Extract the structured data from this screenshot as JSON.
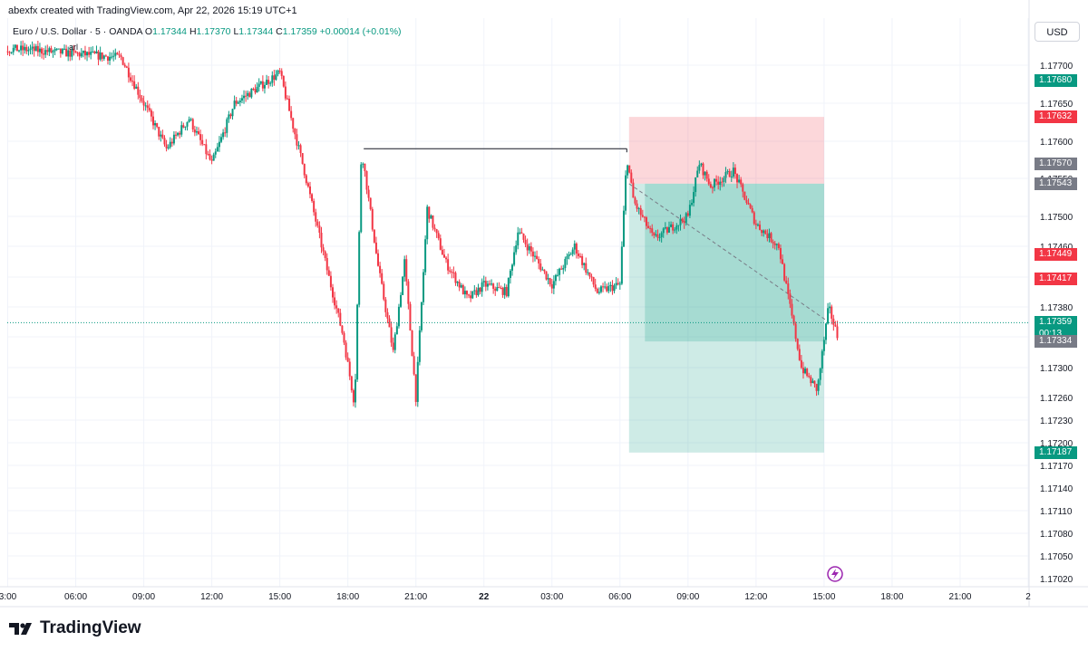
{
  "header": {
    "credit": "abexfx created with TradingView.com, Apr 22, 2026 15:19 UTC+1",
    "symbol": "Euro / U.S. Dollar · 5 · OANDA",
    "open_label": "O",
    "open": "1.17344",
    "high_label": "H",
    "high": "1.17370",
    "low_label": "L",
    "low": "1.17344",
    "close_label": "C",
    "close": "1.17359",
    "change": "+0.00014 (+0.01%)",
    "sub_label": "arl",
    "currency": "USD"
  },
  "brand": {
    "name": "TradingView"
  },
  "colors": {
    "up": "#089981",
    "down": "#f23645",
    "grid": "#f0f3fa",
    "stop_zone": "rgba(242,54,69,0.2)",
    "target_zone": "rgba(8,153,129,0.2)",
    "price_line": "#089981",
    "grey_tag": "#787b86"
  },
  "chart_data": {
    "type": "candlestick",
    "title": "",
    "xlabel": "",
    "ylabel": "USD",
    "interval": "5m",
    "ylim": [
      1.17,
      1.1773
    ],
    "y_ticks": [
      "1.17700",
      "1.17650",
      "1.17600",
      "1.17550",
      "1.17500",
      "1.17460",
      "1.17420",
      "1.17380",
      "1.17340",
      "1.17300",
      "1.17260",
      "1.17230",
      "1.17200",
      "1.17170",
      "1.17140",
      "1.17110",
      "1.17080",
      "1.17050",
      "1.17020"
    ],
    "x_ticks": [
      "3:00",
      "06:00",
      "09:00",
      "12:00",
      "15:00",
      "18:00",
      "21:00",
      "22",
      "03:00",
      "06:00",
      "09:00",
      "12:00",
      "15:00",
      "18:00",
      "21:00",
      "2"
    ],
    "x_tick_hours": [
      3,
      6,
      9,
      12,
      15,
      18,
      21,
      24,
      27,
      30,
      33,
      36,
      39,
      42,
      45,
      48
    ],
    "price_tags": [
      {
        "value": 1.1768,
        "label": "1.17680",
        "color": "#089981"
      },
      {
        "value": 1.17632,
        "label": "1.17632",
        "color": "#f23645"
      },
      {
        "value": 1.1757,
        "label": "1.17570",
        "color": "#787b86"
      },
      {
        "value": 1.17543,
        "label": "1.17543",
        "color": "#787b86"
      },
      {
        "value": 1.17449,
        "label": "1.17449",
        "color": "#f23645"
      },
      {
        "value": 1.17417,
        "label": "1.17417",
        "color": "#f23645"
      },
      {
        "value": 1.17359,
        "label": "1.17359",
        "color": "#089981",
        "sub": "00:13"
      },
      {
        "value": 1.17334,
        "label": "1.17334",
        "color": "#787b86"
      },
      {
        "value": 1.17187,
        "label": "1.17187",
        "color": "#089981"
      }
    ],
    "last_price": 1.17359,
    "position": {
      "side": "short",
      "start_hour": 30.4,
      "end_hour": 39.0,
      "entry": 1.17543,
      "stop": 1.17632,
      "target": 1.17187
    },
    "horizontal_line": {
      "start_hour": 18.7,
      "end_hour": 30.3,
      "value": 1.1759
    },
    "path": [
      [
        -3.5,
        1.1773
      ],
      [
        4,
        1.1772
      ],
      [
        8,
        1.1771
      ],
      [
        9,
        1.1765
      ],
      [
        10,
        1.1759
      ],
      [
        11,
        1.1763
      ],
      [
        12,
        1.1757
      ],
      [
        13,
        1.1765
      ],
      [
        14,
        1.1767
      ],
      [
        15,
        1.1769
      ],
      [
        16,
        1.1757
      ],
      [
        17,
        1.1744
      ],
      [
        17.8,
        1.1734
      ],
      [
        18.3,
        1.1725
      ],
      [
        18.6,
        1.1759
      ],
      [
        19.3,
        1.1744
      ],
      [
        20,
        1.1732
      ],
      [
        20.5,
        1.1744
      ],
      [
        21.0,
        1.1726
      ],
      [
        21.5,
        1.1751
      ],
      [
        22.3,
        1.1744
      ],
      [
        23.3,
        1.1739
      ],
      [
        24,
        1.1741
      ],
      [
        25,
        1.174
      ],
      [
        25.5,
        1.1748
      ],
      [
        27,
        1.1741
      ],
      [
        28,
        1.1746
      ],
      [
        29,
        1.174
      ],
      [
        30.0,
        1.1741
      ],
      [
        30.3,
        1.1758
      ],
      [
        30.6,
        1.1752
      ],
      [
        31.5,
        1.1747
      ],
      [
        33,
        1.175
      ],
      [
        33.5,
        1.1757
      ],
      [
        34,
        1.1754
      ],
      [
        35,
        1.1756
      ],
      [
        36,
        1.1749
      ],
      [
        37,
        1.1746
      ],
      [
        38,
        1.173
      ],
      [
        38.7,
        1.1727
      ],
      [
        39.2,
        1.1738
      ],
      [
        39.6,
        1.1734
      ]
    ]
  }
}
